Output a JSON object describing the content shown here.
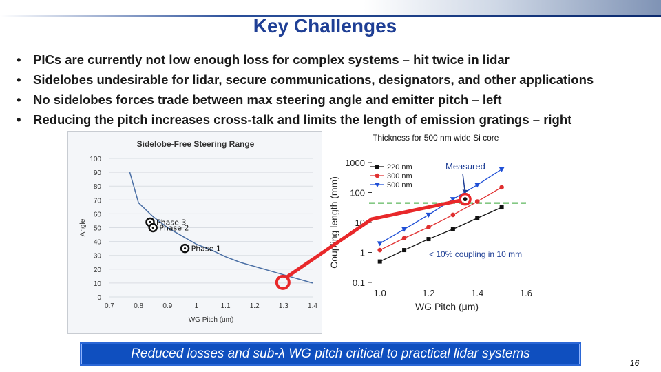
{
  "slide": {
    "title": "Key Challenges",
    "bullets": [
      "PICs are currently not low enough loss for complex systems – hit twice in lidar",
      "Sidelobes undesirable for lidar, secure communications, designators, and other applications",
      "No sidelobes forces trade between max steering angle and emitter pitch – left",
      "Reducing the pitch increases cross-talk and limits the length of emission gratings – right"
    ],
    "bullet_symbol": "•",
    "thickness_note": "Thickness for 500 nm wide Si core",
    "measured_label": "Measured",
    "coupling_label": "< 10% coupling in 10 mm",
    "banner": "Reduced losses and sub-λ WG pitch critical to practical lidar systems",
    "page_number": "16",
    "colors": {
      "title": "#1f3f95",
      "banner_bg": "#0f4fbf",
      "annotation_red": "#e8282a",
      "threshold_green": "#3aa63a"
    }
  },
  "chart_data": [
    {
      "type": "line",
      "title": "Sidelobe-Free Steering Range",
      "xlabel": "WG Pitch (um)",
      "ylabel": "Angle",
      "xlim": [
        0.7,
        1.4
      ],
      "ylim": [
        0,
        100
      ],
      "xticks": [
        "0.7",
        "0.8",
        "0.9",
        "1",
        "1.1",
        "1.2",
        "1.3",
        "1.4"
      ],
      "yticks": [
        "0",
        "10",
        "20",
        "30",
        "40",
        "50",
        "60",
        "70",
        "80",
        "90",
        "100"
      ],
      "x": [
        0.77,
        0.8,
        0.85,
        0.9,
        0.95,
        1.0,
        1.05,
        1.1,
        1.15,
        1.2,
        1.25,
        1.3,
        1.35,
        1.4
      ],
      "values": [
        90,
        68,
        58,
        50,
        44,
        38,
        34,
        29,
        25,
        22,
        19,
        16,
        13,
        10
      ],
      "grid": true,
      "phases": [
        {
          "label": "Phase 3",
          "x": 0.84,
          "y": 54
        },
        {
          "label": "Phase 2",
          "x": 0.85,
          "y": 50
        },
        {
          "label": "Phase 1",
          "x": 0.96,
          "y": 35
        }
      ],
      "highlight": {
        "x": 1.3,
        "y": 10
      }
    },
    {
      "type": "line",
      "xlabel": "WG Pitch (μm)",
      "ylabel": "Coupling length (mm)",
      "log_y": true,
      "xlim": [
        0.95,
        1.6
      ],
      "ylim": [
        0.1,
        1000
      ],
      "xticks": [
        "1.0",
        "1.2",
        "1.4",
        "1.6"
      ],
      "yticks": [
        "0.1",
        "1",
        "10",
        "100",
        "1000"
      ],
      "legend_position": "top-left",
      "x": [
        1.0,
        1.1,
        1.2,
        1.3,
        1.4,
        1.5
      ],
      "series": [
        {
          "name": "220 nm",
          "color": "#111111",
          "marker": "square",
          "values": [
            0.5,
            1.2,
            2.8,
            6,
            14,
            32
          ]
        },
        {
          "name": "300 nm",
          "color": "#e03030",
          "marker": "circle",
          "values": [
            1.2,
            3,
            7,
            18,
            50,
            150
          ]
        },
        {
          "name": "500 nm",
          "color": "#1f4fd6",
          "marker": "triangle",
          "values": [
            2,
            6,
            18,
            60,
            180,
            600
          ]
        }
      ],
      "threshold_y": 45,
      "measured_point": {
        "x": 1.35,
        "y": 60
      }
    }
  ]
}
